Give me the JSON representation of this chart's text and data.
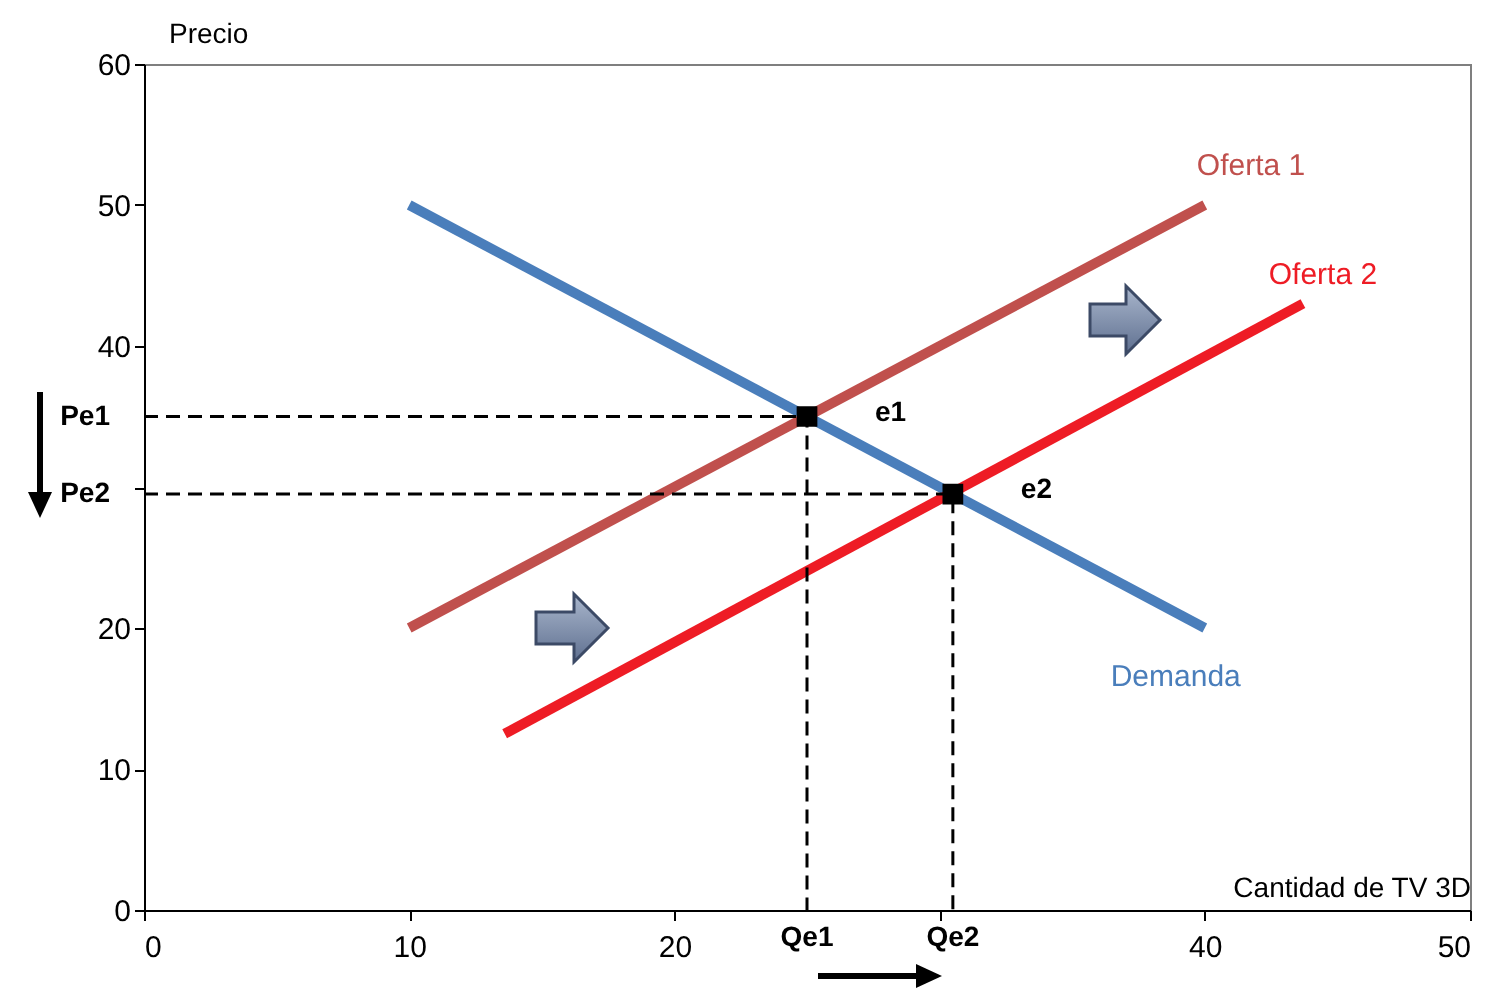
{
  "chart_data": {
    "type": "line",
    "xlabel": "Cantidad de TV 3D",
    "ylabel": "Precio",
    "xlim": [
      0,
      50
    ],
    "ylim": [
      0,
      60
    ],
    "xticks": [
      0,
      10,
      20,
      {
        "value": 30,
        "label": null
      },
      40,
      50
    ],
    "yticks": [
      0,
      10,
      20,
      {
        "value": 30,
        "label": null
      },
      40,
      50,
      60
    ],
    "grid": false,
    "series": [
      {
        "name": "Demanda",
        "color": "#4a7ebb",
        "x": [
          10,
          40
        ],
        "values": [
          50,
          20
        ]
      },
      {
        "name": "Oferta  1",
        "color": "#c0504d",
        "x": [
          10,
          40
        ],
        "values": [
          20,
          50
        ]
      },
      {
        "name": "Oferta  2",
        "color": "#ee1c25",
        "x": [
          13.6,
          43.7
        ],
        "values": [
          12.5,
          43
        ]
      },
      {
        "type": "line",
        "line_style": "dashed",
        "color": "#000000",
        "x": [
          0,
          25,
          25
        ],
        "values": [
          35,
          35,
          0
        ]
      },
      {
        "type": "line",
        "line_style": "dashed",
        "color": "#000000",
        "x": [
          0,
          30.5,
          30.5
        ],
        "values": [
          29.5,
          29.5,
          0
        ]
      },
      {
        "type": "scatter",
        "marker": "square",
        "color": "#000000",
        "x": [
          25,
          30.5
        ],
        "values": [
          35,
          29.5
        ]
      }
    ],
    "annotations": [
      {
        "text": "Pe1",
        "x": 0,
        "y": 35
      },
      {
        "text": "Pe2",
        "x": 0,
        "y": 29.5
      },
      {
        "text": "Qe1",
        "x": 25,
        "y": 0
      },
      {
        "text": "Qe2",
        "x": 30.5,
        "y": 0
      },
      {
        "text": "e1",
        "x": 25,
        "y": 35
      },
      {
        "text": "e2",
        "x": 30.5,
        "y": 29.5
      }
    ]
  }
}
